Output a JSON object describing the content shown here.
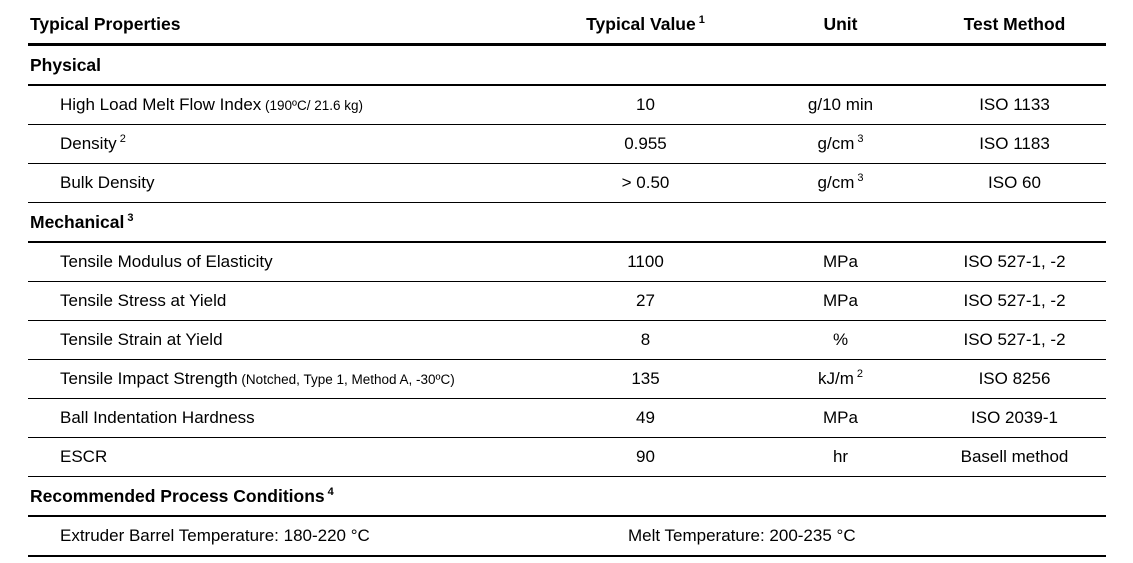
{
  "table": {
    "header": {
      "properties": "Typical Properties",
      "value": "Typical Value",
      "value_sup": "1",
      "unit": "Unit",
      "method": "Test Method"
    },
    "sections": [
      {
        "title": "Physical",
        "sup": "",
        "rows": [
          {
            "property": "High Load Melt Flow Index",
            "sup": "",
            "note": "(190ºC/ 21.6 kg)",
            "value": "10",
            "unit": "g/10 min",
            "unit_sup": "",
            "method": "ISO 1133"
          },
          {
            "property": "Density",
            "sup": "2",
            "note": "",
            "value": "0.955",
            "unit": "g/cm",
            "unit_sup": "3",
            "method": "ISO 1183"
          },
          {
            "property": "Bulk Density",
            "sup": "",
            "note": "",
            "value": "> 0.50",
            "unit": "g/cm",
            "unit_sup": "3",
            "method": "ISO 60"
          }
        ]
      },
      {
        "title": "Mechanical",
        "sup": "3",
        "rows": [
          {
            "property": "Tensile Modulus of Elasticity",
            "sup": "",
            "note": "",
            "value": "1100",
            "unit": "MPa",
            "unit_sup": "",
            "method": "ISO 527-1, -2"
          },
          {
            "property": "Tensile Stress at Yield",
            "sup": "",
            "note": "",
            "value": "27",
            "unit": "MPa",
            "unit_sup": "",
            "method": "ISO 527-1, -2"
          },
          {
            "property": "Tensile Strain at Yield",
            "sup": "",
            "note": "",
            "value": "8",
            "unit": "%",
            "unit_sup": "",
            "method": "ISO 527-1, -2"
          },
          {
            "property": "Tensile Impact Strength",
            "sup": "",
            "note": "(Notched, Type 1, Method A, -30ºC)",
            "value": "135",
            "unit": "kJ/m",
            "unit_sup": "2",
            "method": "ISO 8256"
          },
          {
            "property": "Ball Indentation Hardness",
            "sup": "",
            "note": "",
            "value": "49",
            "unit": "MPa",
            "unit_sup": "",
            "method": "ISO 2039-1"
          },
          {
            "property": "ESCR",
            "sup": "",
            "note": "",
            "value": "90",
            "unit": "hr",
            "unit_sup": "",
            "method": "Basell method"
          }
        ]
      }
    ],
    "process": {
      "title": "Recommended Process Conditions",
      "sup": "4",
      "left": "Extruder Barrel Temperature: 180-220 °C",
      "right": "Melt Temperature: 200-235 °C"
    }
  }
}
